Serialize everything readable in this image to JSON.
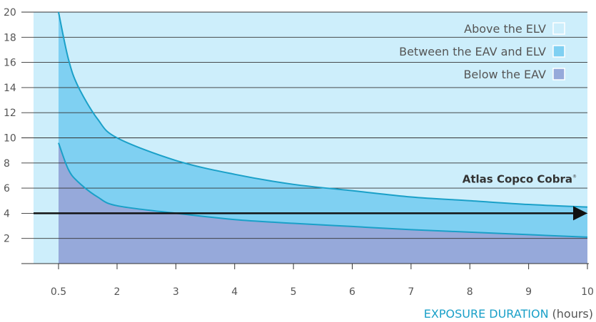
{
  "chart_data": {
    "type": "area",
    "x_title": {
      "main": "EXPOSURE DURATION",
      "unit": "(hours)"
    },
    "x_ticks": [
      0.5,
      2,
      3,
      4,
      5,
      6,
      7,
      8,
      9,
      10
    ],
    "x_tick_labels": [
      "0.5",
      "2",
      "3",
      "4",
      "5",
      "6",
      "7",
      "8",
      "9",
      "10"
    ],
    "y_ticks": [
      2,
      4,
      6,
      8,
      10,
      12,
      14,
      16,
      18,
      20
    ],
    "y_tick_labels": [
      "2",
      "4",
      "6",
      "8",
      "10",
      "12",
      "14",
      "16",
      "18",
      "20"
    ],
    "ylim": [
      0,
      20
    ],
    "grid": true,
    "legend_position": "top-right",
    "legend": [
      {
        "label": "Above the ELV",
        "color": "#cdeefb"
      },
      {
        "label": "Between the EAV and ELV",
        "color": "#7fd0f2"
      },
      {
        "label": "Below the EAV",
        "color": "#96a9da"
      }
    ],
    "series": [
      {
        "key": "elv",
        "color": "#1aa0c8",
        "x": [
          0.5,
          0.75,
          1,
          1.5,
          2,
          3,
          4,
          5,
          6,
          7,
          8,
          9,
          10
        ],
        "y": [
          20,
          16.3,
          14.1,
          11.5,
          10.0,
          8.2,
          7.1,
          6.3,
          5.8,
          5.3,
          5.0,
          4.7,
          4.5
        ]
      },
      {
        "key": "eav",
        "color": "#1aa0c8",
        "x": [
          0.5,
          0.75,
          1,
          1.5,
          2,
          3,
          4,
          5,
          6,
          7,
          8,
          9,
          10
        ],
        "y": [
          9.6,
          7.5,
          6.5,
          5.3,
          4.6,
          4.0,
          3.5,
          3.2,
          2.95,
          2.7,
          2.5,
          2.3,
          2.1
        ]
      }
    ],
    "annotations": [
      {
        "text": "Atlas Copco Cobra",
        "mark": "®",
        "value": 4
      }
    ],
    "arrow_color": "#111111"
  }
}
